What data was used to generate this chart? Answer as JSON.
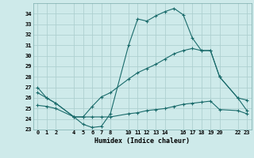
{
  "xlabel": "Humidex (Indice chaleur)",
  "bg_color": "#ceeaea",
  "grid_color": "#aed0d0",
  "line_color": "#1a6b6b",
  "ylim": [
    23,
    35
  ],
  "xlim": [
    -0.5,
    23.5
  ],
  "yticks": [
    23,
    24,
    25,
    26,
    27,
    28,
    29,
    30,
    31,
    32,
    33,
    34
  ],
  "xticks": [
    0,
    1,
    2,
    4,
    5,
    6,
    7,
    8,
    10,
    11,
    12,
    13,
    14,
    16,
    17,
    18,
    19,
    20,
    22,
    23
  ],
  "series": [
    {
      "x": [
        0,
        1,
        2,
        4,
        5,
        6,
        7,
        8,
        10,
        11,
        12,
        13,
        14,
        15,
        16,
        17,
        18,
        19,
        20,
        22,
        23
      ],
      "y": [
        27.0,
        26.0,
        25.5,
        24.2,
        23.5,
        23.2,
        23.3,
        24.5,
        31.0,
        33.5,
        33.3,
        33.8,
        34.2,
        34.5,
        33.9,
        31.7,
        30.5,
        30.5,
        28.0,
        26.0,
        24.8
      ]
    },
    {
      "x": [
        0,
        1,
        2,
        4,
        5,
        6,
        7,
        8,
        10,
        11,
        12,
        13,
        14,
        15,
        16,
        17,
        18,
        19,
        20,
        22,
        23
      ],
      "y": [
        26.5,
        26.0,
        25.5,
        24.2,
        24.2,
        25.2,
        26.1,
        26.5,
        27.8,
        28.4,
        28.8,
        29.2,
        29.7,
        30.2,
        30.5,
        30.7,
        30.5,
        30.5,
        28.0,
        26.0,
        25.8
      ]
    },
    {
      "x": [
        0,
        1,
        2,
        4,
        5,
        6,
        7,
        8,
        10,
        11,
        12,
        13,
        14,
        15,
        16,
        17,
        18,
        19,
        20,
        22,
        23
      ],
      "y": [
        25.3,
        25.2,
        25.0,
        24.2,
        24.2,
        24.2,
        24.2,
        24.2,
        24.5,
        24.6,
        24.8,
        24.9,
        25.0,
        25.2,
        25.4,
        25.5,
        25.6,
        25.7,
        24.9,
        24.8,
        24.5
      ]
    }
  ]
}
